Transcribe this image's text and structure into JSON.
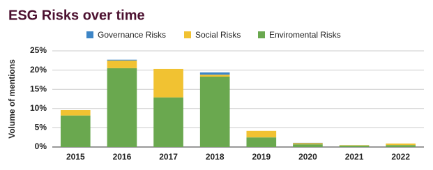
{
  "chart_data": {
    "type": "stacked_bar",
    "title": "ESG Risks over time",
    "y_label": "Volume of mentions",
    "categories": [
      "2015",
      "2016",
      "2017",
      "2018",
      "2019",
      "2020",
      "2021",
      "2022"
    ],
    "series": [
      {
        "name": "Governance Risks",
        "color": "#3d85c6",
        "values": [
          0,
          0.2,
          0,
          0.6,
          0,
          0.1,
          0,
          0
        ]
      },
      {
        "name": "Social Risks",
        "color": "#f1c232",
        "values": [
          1.4,
          2.0,
          7.4,
          0.5,
          1.7,
          0.3,
          0.1,
          0.4
        ]
      },
      {
        "name": "Enviromental Risks",
        "color": "#6aa84f",
        "values": [
          8.2,
          20.5,
          12.9,
          18.3,
          2.5,
          0.7,
          0.4,
          0.5
        ]
      }
    ],
    "ylim": [
      0,
      25
    ],
    "yticks": [
      {
        "value": 0,
        "label": "0%"
      },
      {
        "value": 5,
        "label": "5%"
      },
      {
        "value": 10,
        "label": "10%"
      },
      {
        "value": 15,
        "label": "15%"
      },
      {
        "value": 20,
        "label": "20%"
      },
      {
        "value": 25,
        "label": "25%"
      }
    ],
    "grid": true,
    "legend": "top"
  }
}
